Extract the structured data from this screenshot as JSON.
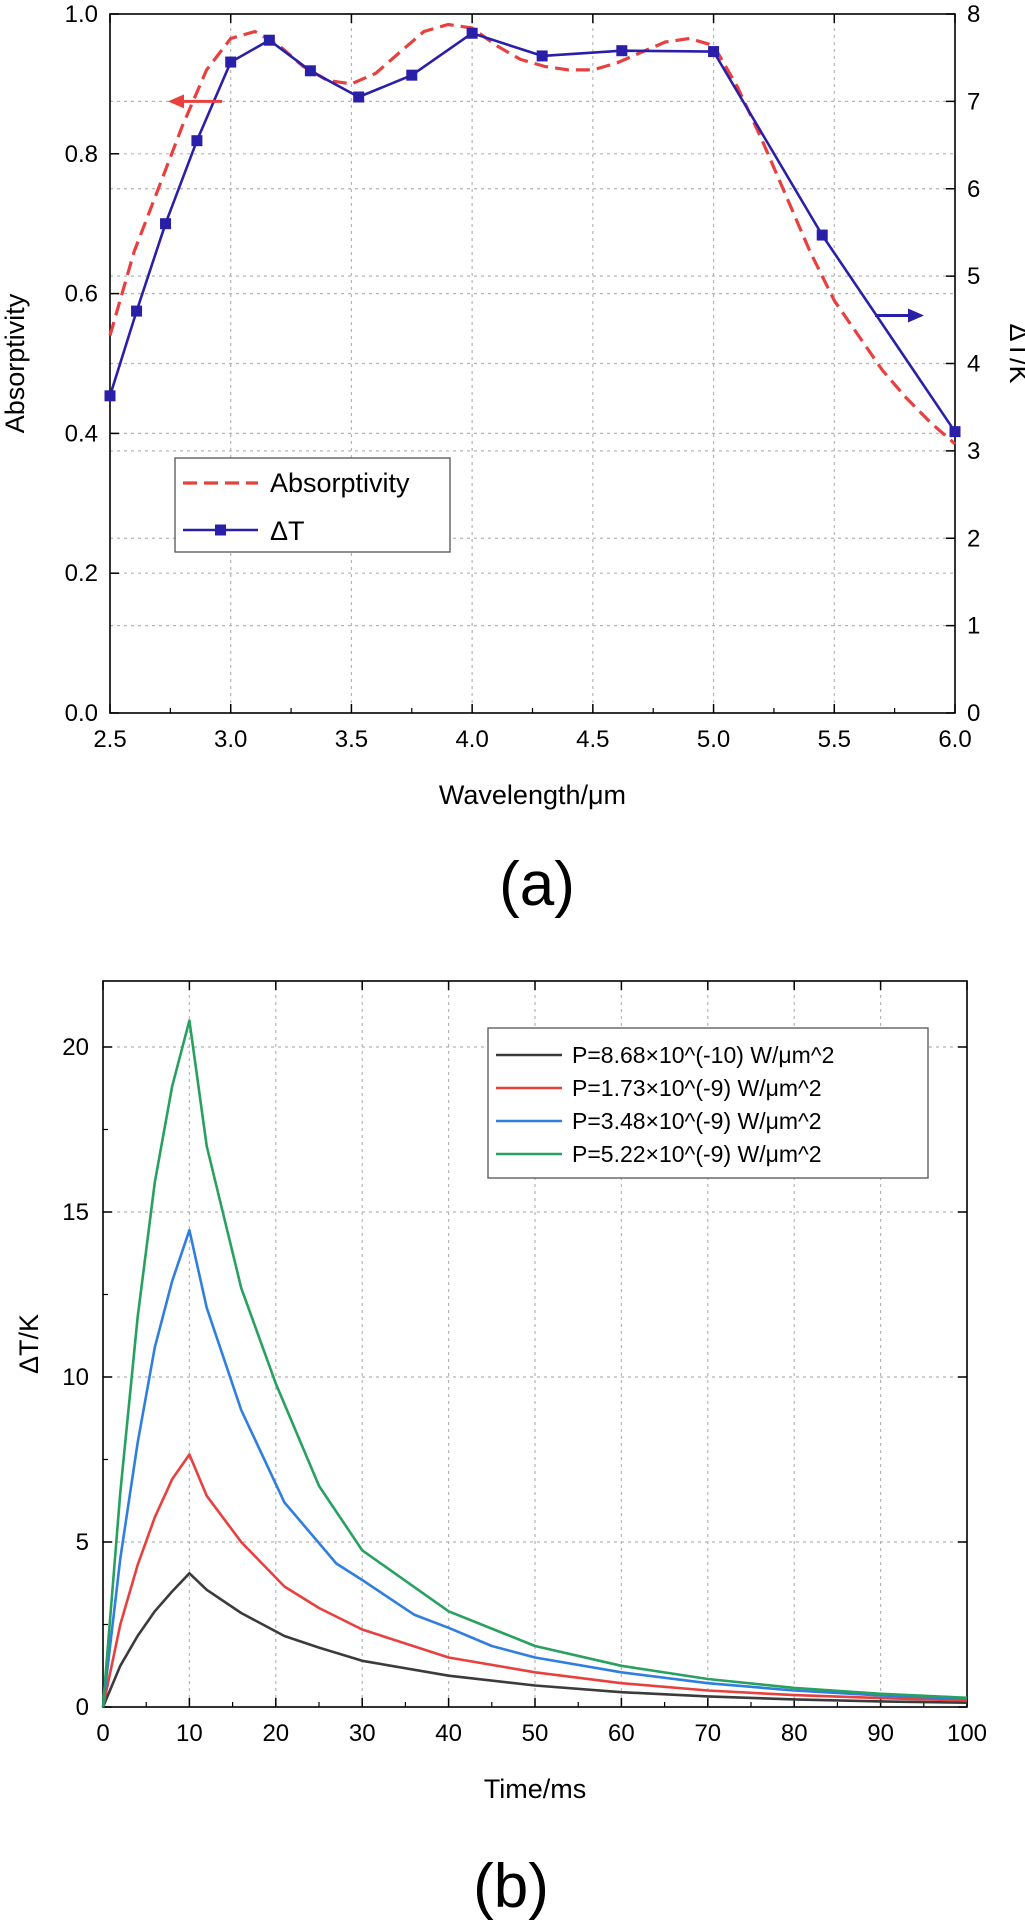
{
  "chart_data": [
    {
      "type": "line",
      "panel_label": "(a)",
      "xlabel": "Wavelength/μm",
      "ylabel": "Absorptivity",
      "y2label": "ΔT/K",
      "xlim": [
        2.5,
        6.0
      ],
      "ylim": [
        0.0,
        1.0
      ],
      "y2lim": [
        0,
        8
      ],
      "x_ticks": [
        "2.5",
        "3.0",
        "3.5",
        "4.0",
        "4.5",
        "5.0",
        "5.5",
        "6.0"
      ],
      "y_ticks": [
        "0.0",
        "0.2",
        "0.4",
        "0.6",
        "0.8",
        "1.0"
      ],
      "y2_ticks": [
        "0",
        "1",
        "2",
        "3",
        "4",
        "5",
        "6",
        "7",
        "8"
      ],
      "grid": true,
      "legend_position": "bottom-left",
      "series": [
        {
          "name": "Absorptivity",
          "axis": "left",
          "color": "#e8403f",
          "style": "dashed",
          "x": [
            2.5,
            2.6,
            2.7,
            2.8,
            2.9,
            3.0,
            3.1,
            3.2,
            3.3,
            3.4,
            3.5,
            3.6,
            3.7,
            3.8,
            3.9,
            4.0,
            4.1,
            4.2,
            4.3,
            4.4,
            4.5,
            4.6,
            4.7,
            4.8,
            4.9,
            5.0,
            5.1,
            5.2,
            5.3,
            5.4,
            5.5,
            5.6,
            5.7,
            5.8,
            5.9,
            6.0
          ],
          "y": [
            0.54,
            0.66,
            0.75,
            0.84,
            0.92,
            0.965,
            0.975,
            0.955,
            0.925,
            0.905,
            0.9,
            0.915,
            0.945,
            0.975,
            0.985,
            0.98,
            0.955,
            0.935,
            0.925,
            0.92,
            0.92,
            0.93,
            0.945,
            0.96,
            0.965,
            0.955,
            0.895,
            0.82,
            0.74,
            0.66,
            0.59,
            0.54,
            0.49,
            0.45,
            0.415,
            0.385
          ]
        },
        {
          "name": "ΔT",
          "axis": "right",
          "color": "#2a1fa8",
          "style": "solid-square-markers",
          "x": [
            2.5,
            2.61,
            2.73,
            2.86,
            3.0,
            3.16,
            3.33,
            3.53,
            3.75,
            4.0,
            4.29,
            4.62,
            5.0,
            5.45,
            6.0
          ],
          "y": [
            3.63,
            4.6,
            5.6,
            6.55,
            7.45,
            7.7,
            7.35,
            7.05,
            7.3,
            7.78,
            7.52,
            7.58,
            7.57,
            5.47,
            3.22
          ]
        }
      ]
    },
    {
      "type": "line",
      "panel_label": "(b)",
      "xlabel": "Time/ms",
      "ylabel": "ΔT/K",
      "xlim": [
        0,
        100
      ],
      "ylim": [
        0,
        22
      ],
      "x_ticks": [
        "0",
        "10",
        "20",
        "30",
        "40",
        "50",
        "60",
        "70",
        "80",
        "90",
        "100"
      ],
      "y_ticks": [
        "0",
        "5",
        "10",
        "15",
        "20"
      ],
      "grid": true,
      "legend_position": "top-right",
      "series": [
        {
          "name": "P=8.68×10^(-10)  W/μm^2",
          "color": "#3b3b3b",
          "x": [
            0,
            2,
            4,
            6,
            8,
            10,
            12,
            16,
            21,
            25,
            30,
            40,
            50,
            60,
            70,
            80,
            90,
            100
          ],
          "y": [
            0,
            1.25,
            2.15,
            2.9,
            3.5,
            4.05,
            3.55,
            2.85,
            2.15,
            1.8,
            1.4,
            0.95,
            0.65,
            0.45,
            0.32,
            0.23,
            0.17,
            0.13
          ]
        },
        {
          "name": "P=1.73×10^(-9)  W/μm^2",
          "color": "#e8403f",
          "x": [
            0,
            2,
            4,
            6,
            8,
            10,
            12,
            16,
            21,
            25,
            30,
            40,
            50,
            60,
            70,
            80,
            90,
            100
          ],
          "y": [
            0,
            2.5,
            4.3,
            5.75,
            6.9,
            7.65,
            6.4,
            5.0,
            3.65,
            3.0,
            2.35,
            1.5,
            1.05,
            0.72,
            0.5,
            0.36,
            0.27,
            0.2
          ]
        },
        {
          "name": "P=3.48×10^(-9)  W/μm^2",
          "color": "#2f7ee0",
          "x": [
            0,
            2,
            4,
            6,
            8,
            10,
            12,
            16,
            21,
            27,
            30,
            36,
            40,
            45,
            50,
            60,
            70,
            80,
            90,
            100
          ],
          "y": [
            0,
            4.5,
            8.0,
            10.9,
            12.9,
            14.45,
            12.1,
            9.0,
            6.2,
            4.35,
            3.85,
            2.8,
            2.4,
            1.85,
            1.5,
            1.05,
            0.72,
            0.5,
            0.35,
            0.25
          ]
        },
        {
          "name": "P=5.22×10^(-9)  W/μm^2",
          "color": "#27a060",
          "x": [
            0,
            2,
            4,
            6,
            8,
            10,
            12,
            16,
            20,
            25,
            30,
            40,
            50,
            60,
            70,
            80,
            90,
            100
          ],
          "y": [
            0,
            6.5,
            11.8,
            15.9,
            18.8,
            20.8,
            17.0,
            12.7,
            9.8,
            6.7,
            4.75,
            2.9,
            1.85,
            1.25,
            0.85,
            0.58,
            0.4,
            0.28
          ]
        }
      ]
    }
  ]
}
